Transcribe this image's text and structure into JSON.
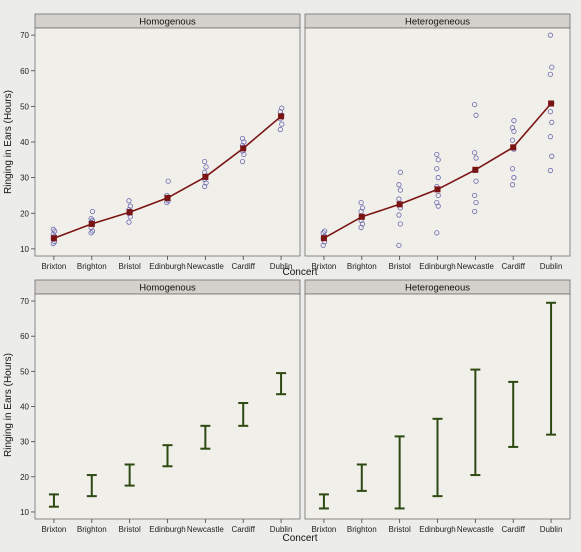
{
  "chart_data": [
    {
      "type": "line",
      "xlabel": "Concert",
      "ylabel": "Ringing in Ears (Hours)",
      "categories": [
        "Brixton",
        "Brighton",
        "Bristol",
        "Edinburgh",
        "Newcastle",
        "Cardiff",
        "Dublin"
      ],
      "ylim": [
        8,
        72
      ],
      "yticks": [
        10,
        20,
        30,
        40,
        50,
        60,
        70
      ],
      "colors": {
        "points": "#6a68b0",
        "line": "#7a1414",
        "errorbar": "#2e4a12"
      },
      "panels": [
        {
          "strip": "Homogenous",
          "series": [
            {
              "style": "points",
              "values": [
                [
                  11.5,
                  12,
                  13,
                  13.5,
                  14,
                  15,
                  15.5
                ],
                [
                  14.5,
                  15,
                  16,
                  17,
                  17.5,
                  18,
                  18.5,
                  20.5
                ],
                [
                  17.5,
                  19,
                  20,
                  20.5,
                  21,
                  22,
                  23.5
                ],
                [
                  23,
                  23.5,
                  24,
                  24.5,
                  25,
                  29
                ],
                [
                  27.5,
                  28.5,
                  29.5,
                  30.5,
                  31.5,
                  33,
                  34.5
                ],
                [
                  34.5,
                  36.5,
                  37.5,
                  38.5,
                  39,
                  40,
                  41
                ],
                [
                  43.5,
                  45,
                  46.5,
                  47.5,
                  48.5,
                  49.5
                ]
              ]
            },
            {
              "style": "mean-line",
              "values": [
                13,
                17,
                20.3,
                24.3,
                30.2,
                38.2,
                47.2
              ]
            }
          ]
        },
        {
          "strip": "Heterogeneous",
          "series": [
            {
              "style": "points",
              "values": [
                [
                  11,
                  12,
                  13,
                  13.5,
                  14.5,
                  15
                ],
                [
                  16,
                  17,
                  18,
                  19,
                  20.5,
                  21.5,
                  23
                ],
                [
                  11,
                  17,
                  19.5,
                  21.5,
                  24,
                  26.5,
                  28,
                  31.5
                ],
                [
                  14.5,
                  22,
                  23,
                  25,
                  27.5,
                  30,
                  32.5,
                  35,
                  36.5
                ],
                [
                  20.5,
                  23,
                  25,
                  29,
                  32,
                  35.5,
                  37,
                  47.5,
                  50.5
                ],
                [
                  28,
                  30,
                  32.5,
                  38,
                  40.5,
                  43,
                  44,
                  46
                ],
                [
                  32,
                  36,
                  41.5,
                  45.5,
                  48.5,
                  51,
                  59,
                  61,
                  70
                ]
              ]
            },
            {
              "style": "mean-line",
              "values": [
                13,
                19,
                22.5,
                26.7,
                32.2,
                38.5,
                50.8
              ]
            }
          ]
        }
      ]
    },
    {
      "type": "errorbar",
      "xlabel": "Concert",
      "ylabel": "Ringing in Ears (Hours)",
      "categories": [
        "Brixton",
        "Brighton",
        "Bristol",
        "Edinburgh",
        "Newcastle",
        "Cardiff",
        "Dublin"
      ],
      "ylim": [
        8,
        72
      ],
      "yticks": [
        10,
        20,
        30,
        40,
        50,
        60,
        70
      ],
      "panels": [
        {
          "strip": "Homogenous",
          "low": [
            11.5,
            14.5,
            17.5,
            23,
            28,
            34.5,
            43.5
          ],
          "high": [
            15,
            20.5,
            23.5,
            29,
            34.5,
            41,
            49.5
          ]
        },
        {
          "strip": "Heterogeneous",
          "low": [
            11,
            16,
            11,
            14.5,
            20.5,
            28.5,
            32
          ],
          "high": [
            15,
            23.5,
            31.5,
            36.5,
            50.5,
            47,
            69.5
          ]
        }
      ]
    }
  ]
}
